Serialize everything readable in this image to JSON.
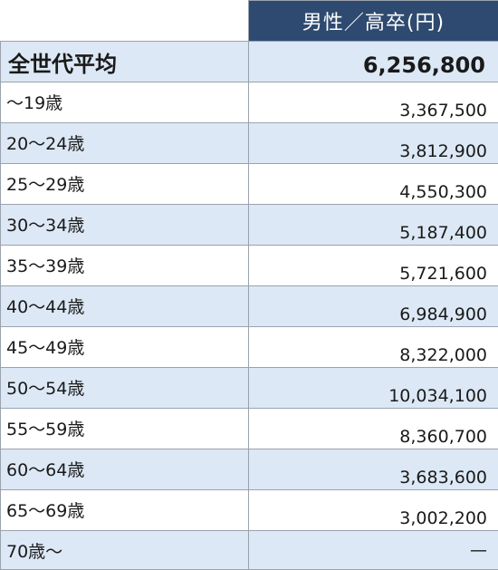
{
  "table": {
    "header": "男性／高卒(円)",
    "average": {
      "label": "全世代平均",
      "value": "6,256,800"
    },
    "rows": [
      {
        "label": "〜19歳",
        "value": "3,367,500"
      },
      {
        "label": "20〜24歳",
        "value": "3,812,900"
      },
      {
        "label": "25〜29歳",
        "value": "4,550,300"
      },
      {
        "label": "30〜34歳",
        "value": "5,187,400"
      },
      {
        "label": "35〜39歳",
        "value": "5,721,600"
      },
      {
        "label": "40〜44歳",
        "value": "6,984,900"
      },
      {
        "label": "45〜49歳",
        "value": "8,322,000"
      },
      {
        "label": "50〜54歳",
        "value": "10,034,100"
      },
      {
        "label": "55〜59歳",
        "value": "8,360,700"
      },
      {
        "label": "60〜64歳",
        "value": "3,683,600"
      },
      {
        "label": "65〜69歳",
        "value": "3,002,200"
      },
      {
        "label": "70歳〜",
        "value": "—"
      }
    ]
  },
  "colors": {
    "header_bg": "#2e4a70",
    "alt_row_bg": "#dce8f5",
    "border": "#9aa3ad"
  }
}
